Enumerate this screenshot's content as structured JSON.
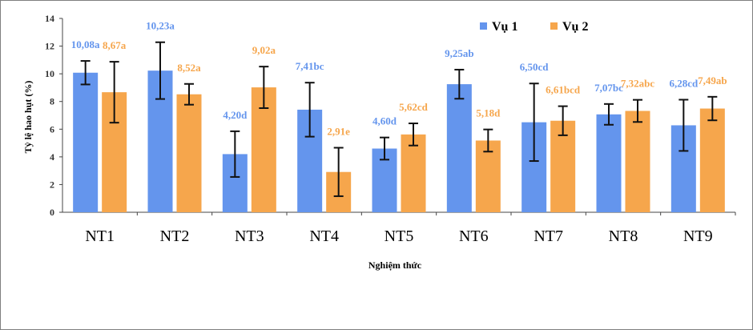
{
  "chart_data": {
    "type": "bar",
    "title": "",
    "xlabel": "Nghiệm thức",
    "ylabel": "Tỷ lệ hao hụt (%)",
    "ylim": [
      0,
      14
    ],
    "yticks": [
      0,
      2,
      4,
      6,
      8,
      10,
      12,
      14
    ],
    "grid": false,
    "legend_position": "top-right",
    "categories": [
      "NT1",
      "NT2",
      "NT3",
      "NT4",
      "NT5",
      "NT6",
      "NT7",
      "NT8",
      "NT9"
    ],
    "series": [
      {
        "name": "Vụ 1",
        "color": "#6495ED",
        "values": [
          10.08,
          10.23,
          4.2,
          7.41,
          4.6,
          9.25,
          6.5,
          7.07,
          6.28
        ],
        "errors": [
          0.85,
          2.05,
          1.65,
          1.95,
          0.8,
          1.05,
          2.8,
          0.75,
          1.85
        ],
        "labels": [
          "10,08a",
          "10,23a",
          "4,20d",
          "7,41bc",
          "4,60d",
          "9,25ab",
          "6,50cd",
          "7,07bc",
          "6,28cd"
        ]
      },
      {
        "name": "Vụ 2",
        "color": "#F6A64C",
        "values": [
          8.67,
          8.52,
          9.02,
          2.91,
          5.62,
          5.18,
          6.61,
          7.32,
          7.49
        ],
        "errors": [
          2.2,
          0.75,
          1.5,
          1.75,
          0.8,
          0.8,
          1.05,
          0.8,
          0.85
        ],
        "labels": [
          "8,67a",
          "8,52a",
          "9,02a",
          "2,91e",
          "5,62cd",
          "5,18d",
          "6,61bcd",
          "7,32abc",
          "7,49ab"
        ]
      }
    ]
  }
}
